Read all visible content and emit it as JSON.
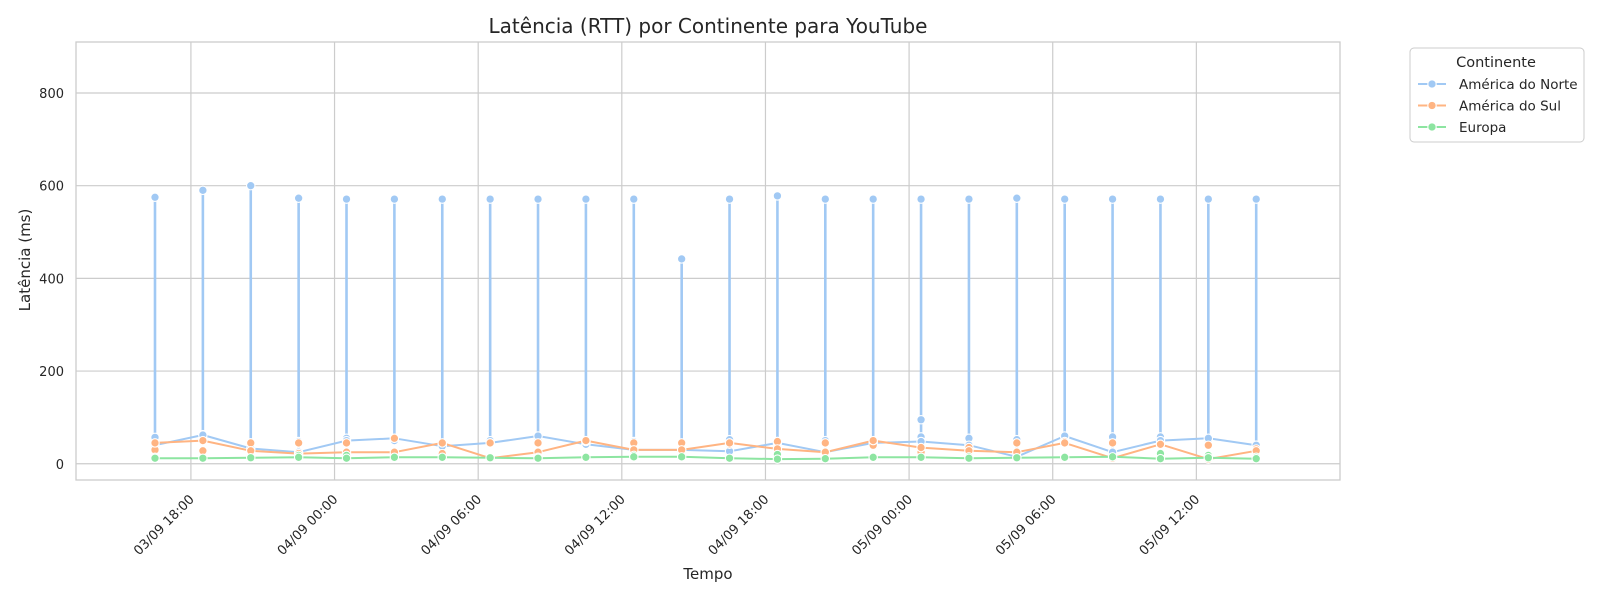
{
  "chart_data": {
    "type": "line",
    "title": "Latência (RTT) por Continente para YouTube",
    "xlabel": "Tempo",
    "ylabel": "Latência (ms)",
    "ylim": [
      -35,
      910
    ],
    "yticks": [
      0,
      200,
      400,
      600,
      800
    ],
    "xlim": [
      "2025-09-03 13:12",
      "2025-09-05 18:00"
    ],
    "xticks": [
      {
        "t": "2025-09-03 18:00",
        "label": "03/09 18:00"
      },
      {
        "t": "2025-09-04 00:00",
        "label": "04/09 00:00"
      },
      {
        "t": "2025-09-04 06:00",
        "label": "04/09 06:00"
      },
      {
        "t": "2025-09-04 12:00",
        "label": "04/09 12:00"
      },
      {
        "t": "2025-09-04 18:00",
        "label": "04/09 18:00"
      },
      {
        "t": "2025-09-05 00:00",
        "label": "05/09 00:00"
      },
      {
        "t": "2025-09-05 06:00",
        "label": "05/09 06:00"
      },
      {
        "t": "2025-09-05 12:00",
        "label": "05/09 12:00"
      }
    ],
    "grid": true,
    "legend": {
      "title": "Continente",
      "placement": "outside-top-right"
    },
    "x": [
      "2025-09-03 16:30",
      "2025-09-03 18:30",
      "2025-09-03 20:30",
      "2025-09-03 22:30",
      "2025-09-04 00:30",
      "2025-09-04 02:30",
      "2025-09-04 04:30",
      "2025-09-04 06:30",
      "2025-09-04 08:30",
      "2025-09-04 10:30",
      "2025-09-04 12:30",
      "2025-09-04 14:30",
      "2025-09-04 16:30",
      "2025-09-04 18:30",
      "2025-09-04 20:30",
      "2025-09-04 22:30",
      "2025-09-05 00:30",
      "2025-09-05 02:30",
      "2025-09-05 04:30",
      "2025-09-05 06:30",
      "2025-09-05 08:30",
      "2025-09-05 10:30",
      "2025-09-05 12:30",
      "2025-09-05 14:30"
    ],
    "series": [
      {
        "name": "América do Norte",
        "color": "#a1c9f4",
        "values": [
          40,
          62,
          33,
          25,
          50,
          55,
          38,
          45,
          60,
          42,
          30,
          30,
          27,
          45,
          25,
          45,
          48,
          40,
          15,
          60,
          25,
          50,
          55,
          40
        ],
        "spikes": [
          575,
          590,
          600,
          573,
          571,
          571,
          571,
          571,
          571,
          571,
          571,
          442,
          571,
          578,
          571,
          571,
          571,
          571,
          573,
          571,
          571,
          571,
          571,
          571
        ],
        "extra_points": [
          [
            0,
            57
          ],
          [
            1,
            63
          ],
          [
            2,
            45
          ],
          [
            3,
            48
          ],
          [
            4,
            55
          ],
          [
            5,
            50
          ],
          [
            6,
            43
          ],
          [
            7,
            50
          ],
          [
            8,
            52
          ],
          [
            9,
            48
          ],
          [
            10,
            48
          ],
          [
            12,
            52
          ],
          [
            13,
            48
          ],
          [
            14,
            50
          ],
          [
            15,
            48
          ],
          [
            16,
            95
          ],
          [
            16,
            58
          ],
          [
            17,
            55
          ],
          [
            18,
            52
          ],
          [
            19,
            58
          ],
          [
            20,
            58
          ],
          [
            21,
            58
          ],
          [
            22,
            50
          ],
          [
            23,
            40
          ]
        ]
      },
      {
        "name": "América do Sul",
        "color": "#ffb482",
        "values": [
          45,
          50,
          28,
          22,
          25,
          25,
          45,
          12,
          25,
          50,
          30,
          30,
          45,
          32,
          25,
          50,
          35,
          28,
          25,
          45,
          12,
          42,
          10,
          28
        ],
        "extra_points": [
          [
            0,
            30
          ],
          [
            1,
            28
          ],
          [
            2,
            45
          ],
          [
            3,
            45
          ],
          [
            4,
            45
          ],
          [
            5,
            55
          ],
          [
            6,
            22
          ],
          [
            7,
            45
          ],
          [
            8,
            45
          ],
          [
            9,
            48
          ],
          [
            10,
            45
          ],
          [
            11,
            45
          ],
          [
            12,
            42
          ],
          [
            13,
            48
          ],
          [
            14,
            45
          ],
          [
            15,
            40
          ],
          [
            16,
            25
          ],
          [
            17,
            35
          ],
          [
            18,
            45
          ],
          [
            19,
            48
          ],
          [
            20,
            45
          ],
          [
            21,
            42
          ],
          [
            22,
            40
          ],
          [
            23,
            32
          ]
        ]
      },
      {
        "name": "Europa",
        "color": "#8de5a1",
        "values": [
          12,
          12,
          13,
          14,
          12,
          14,
          14,
          13,
          12,
          14,
          15,
          15,
          12,
          10,
          11,
          14,
          14,
          12,
          13,
          14,
          15,
          11,
          13,
          11
        ],
        "extra_points": [
          [
            0,
            14
          ],
          [
            3,
            18
          ],
          [
            4,
            18
          ],
          [
            8,
            14
          ],
          [
            10,
            18
          ],
          [
            13,
            20
          ],
          [
            17,
            15
          ],
          [
            21,
            22
          ],
          [
            22,
            18
          ],
          [
            23,
            14
          ]
        ]
      }
    ]
  }
}
